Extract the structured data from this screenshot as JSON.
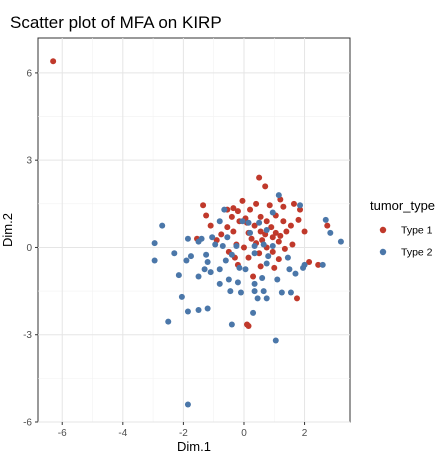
{
  "chart_data": {
    "type": "scatter",
    "title": "Scatter plot of MFA on KIRP",
    "xlabel": "Dim.1",
    "ylabel": "Dim.2",
    "xlim": [
      -6.8,
      3.5
    ],
    "ylim": [
      -6.0,
      7.2
    ],
    "xticks": [
      -6,
      -4,
      -2,
      0,
      2
    ],
    "yticks": [
      -6,
      -3,
      0,
      3,
      6
    ],
    "grid": true,
    "legend": {
      "title": "tumor_type",
      "placement": "right"
    },
    "series": [
      {
        "name": "Type 1",
        "color": "#c0392b",
        "points": [
          {
            "x": -6.3,
            "y": 6.4
          },
          {
            "x": 0.5,
            "y": 2.4
          },
          {
            "x": 0.7,
            "y": 2.1
          },
          {
            "x": 1.2,
            "y": 1.65
          },
          {
            "x": -0.05,
            "y": 1.6
          },
          {
            "x": 0.4,
            "y": 1.5
          },
          {
            "x": -1.35,
            "y": 1.45
          },
          {
            "x": 0.85,
            "y": 1.45
          },
          {
            "x": -0.55,
            "y": 1.3
          },
          {
            "x": -0.35,
            "y": 1.35
          },
          {
            "x": -0.2,
            "y": 1.25
          },
          {
            "x": 0.2,
            "y": 1.3
          },
          {
            "x": 1.3,
            "y": 1.4
          },
          {
            "x": 1.65,
            "y": 1.5
          },
          {
            "x": -1.25,
            "y": 1.1
          },
          {
            "x": -0.4,
            "y": 1.05
          },
          {
            "x": 0.05,
            "y": 1.0
          },
          {
            "x": 0.55,
            "y": 1.05
          },
          {
            "x": 1.05,
            "y": 1.1
          },
          {
            "x": 1.85,
            "y": 1.3
          },
          {
            "x": -0.15,
            "y": 0.9
          },
          {
            "x": 0.1,
            "y": 0.85
          },
          {
            "x": 0.75,
            "y": 0.9
          },
          {
            "x": 1.3,
            "y": 0.9
          },
          {
            "x": 1.8,
            "y": 0.95
          },
          {
            "x": -1.1,
            "y": 0.75
          },
          {
            "x": -0.55,
            "y": 0.7
          },
          {
            "x": 0.35,
            "y": 0.75
          },
          {
            "x": 0.9,
            "y": 0.7
          },
          {
            "x": 1.55,
            "y": 0.75
          },
          {
            "x": 2.75,
            "y": 0.75
          },
          {
            "x": -0.35,
            "y": 0.55
          },
          {
            "x": 0.15,
            "y": 0.5
          },
          {
            "x": 0.55,
            "y": 0.55
          },
          {
            "x": 1.05,
            "y": 0.5
          },
          {
            "x": 1.4,
            "y": 0.55
          },
          {
            "x": 2.0,
            "y": 0.55
          },
          {
            "x": -0.75,
            "y": 0.45
          },
          {
            "x": 0.7,
            "y": 0.45
          },
          {
            "x": 0.95,
            "y": 0.35
          },
          {
            "x": 1.2,
            "y": 0.4
          },
          {
            "x": -1.55,
            "y": 0.3
          },
          {
            "x": -0.9,
            "y": 0.25
          },
          {
            "x": 0.25,
            "y": 0.3
          },
          {
            "x": 0.6,
            "y": 0.25
          },
          {
            "x": 1.15,
            "y": 0.2
          },
          {
            "x": -0.25,
            "y": 0.1
          },
          {
            "x": 0.4,
            "y": 0.15
          },
          {
            "x": 1.6,
            "y": 0.1
          },
          {
            "x": 0.0,
            "y": 0.0
          },
          {
            "x": 0.75,
            "y": 0.0
          },
          {
            "x": 1.35,
            "y": -0.05
          },
          {
            "x": -0.5,
            "y": -0.15
          },
          {
            "x": 0.5,
            "y": -0.2
          },
          {
            "x": 0.95,
            "y": -0.15
          },
          {
            "x": -0.3,
            "y": -0.35
          },
          {
            "x": 0.15,
            "y": -0.35
          },
          {
            "x": 1.15,
            "y": -0.4
          },
          {
            "x": 2.15,
            "y": -0.5
          },
          {
            "x": 2.45,
            "y": -0.6
          },
          {
            "x": -0.2,
            "y": -0.6
          },
          {
            "x": 0.55,
            "y": -0.65
          },
          {
            "x": 1.0,
            "y": -0.7
          },
          {
            "x": 0.3,
            "y": -1.0
          },
          {
            "x": 1.75,
            "y": -1.75
          },
          {
            "x": 0.1,
            "y": -2.65
          },
          {
            "x": 0.15,
            "y": -2.7
          }
        ]
      },
      {
        "name": "Type 2",
        "color": "#4b77a9",
        "points": [
          {
            "x": 1.15,
            "y": 1.8
          },
          {
            "x": 1.85,
            "y": 1.45
          },
          {
            "x": -0.65,
            "y": 1.3
          },
          {
            "x": 0.95,
            "y": 1.2
          },
          {
            "x": 2.7,
            "y": 0.95
          },
          {
            "x": -2.7,
            "y": 0.75
          },
          {
            "x": -0.8,
            "y": 0.9
          },
          {
            "x": -0.05,
            "y": 0.9
          },
          {
            "x": 0.15,
            "y": 0.85
          },
          {
            "x": 0.5,
            "y": 0.85
          },
          {
            "x": 2.85,
            "y": 0.5
          },
          {
            "x": -1.85,
            "y": 0.3
          },
          {
            "x": -1.4,
            "y": 0.3
          },
          {
            "x": -1.05,
            "y": 0.35
          },
          {
            "x": -0.55,
            "y": 0.35
          },
          {
            "x": 0.2,
            "y": 0.5
          },
          {
            "x": 0.75,
            "y": 0.6
          },
          {
            "x": 3.2,
            "y": 0.2
          },
          {
            "x": -2.95,
            "y": 0.15
          },
          {
            "x": -1.5,
            "y": 0.2
          },
          {
            "x": -0.95,
            "y": 0.1
          },
          {
            "x": -0.7,
            "y": 0.05
          },
          {
            "x": -0.25,
            "y": 0.05
          },
          {
            "x": 0.35,
            "y": 0.05
          },
          {
            "x": 0.65,
            "y": 0.1
          },
          {
            "x": 0.95,
            "y": 0.05
          },
          {
            "x": -2.3,
            "y": -0.2
          },
          {
            "x": -1.75,
            "y": -0.3
          },
          {
            "x": -1.25,
            "y": -0.25
          },
          {
            "x": -0.4,
            "y": -0.25
          },
          {
            "x": 0.35,
            "y": -0.2
          },
          {
            "x": 0.8,
            "y": -0.3
          },
          {
            "x": 1.45,
            "y": -0.35
          },
          {
            "x": -2.95,
            "y": -0.45
          },
          {
            "x": -1.9,
            "y": -0.45
          },
          {
            "x": -1.2,
            "y": -0.5
          },
          {
            "x": -0.6,
            "y": -0.45
          },
          {
            "x": 0.75,
            "y": -0.55
          },
          {
            "x": 2.0,
            "y": -0.6
          },
          {
            "x": -1.3,
            "y": -0.75
          },
          {
            "x": -0.8,
            "y": -0.75
          },
          {
            "x": -0.15,
            "y": -0.7
          },
          {
            "x": 0.05,
            "y": -0.75
          },
          {
            "x": 1.5,
            "y": -0.75
          },
          {
            "x": 1.95,
            "y": -0.7
          },
          {
            "x": 2.6,
            "y": -0.6
          },
          {
            "x": -2.15,
            "y": -0.95
          },
          {
            "x": -1.1,
            "y": -0.85
          },
          {
            "x": 1.7,
            "y": -0.9
          },
          {
            "x": -1.5,
            "y": -1.0
          },
          {
            "x": -0.5,
            "y": -1.1
          },
          {
            "x": -0.2,
            "y": -1.2
          },
          {
            "x": 0.6,
            "y": -1.05
          },
          {
            "x": 1.1,
            "y": -1.1
          },
          {
            "x": -0.8,
            "y": -1.25
          },
          {
            "x": 0.35,
            "y": -1.25
          },
          {
            "x": -0.45,
            "y": -1.5
          },
          {
            "x": -0.1,
            "y": -1.55
          },
          {
            "x": 0.35,
            "y": -1.5
          },
          {
            "x": 0.65,
            "y": -1.5
          },
          {
            "x": 1.25,
            "y": -1.55
          },
          {
            "x": 1.55,
            "y": -1.55
          },
          {
            "x": -2.05,
            "y": -1.7
          },
          {
            "x": 0.45,
            "y": -1.75
          },
          {
            "x": 0.75,
            "y": -1.75
          },
          {
            "x": -1.2,
            "y": -2.1
          },
          {
            "x": -1.5,
            "y": -2.15
          },
          {
            "x": -1.85,
            "y": -2.2
          },
          {
            "x": 0.3,
            "y": -2.25
          },
          {
            "x": -2.5,
            "y": -2.55
          },
          {
            "x": -0.4,
            "y": -2.65
          },
          {
            "x": 1.05,
            "y": -3.2
          },
          {
            "x": -1.85,
            "y": -5.4
          }
        ]
      }
    ]
  }
}
